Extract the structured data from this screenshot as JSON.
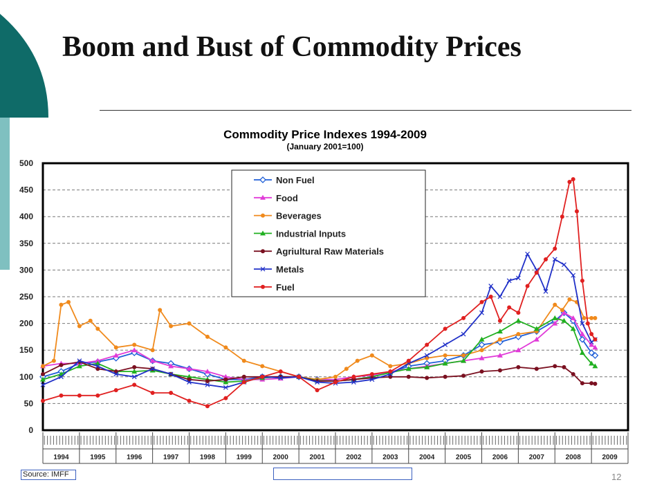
{
  "slide": {
    "title": "Boom and Bust of Commodity Prices",
    "page_number": "12",
    "source": "Source: IMFF"
  },
  "chart_data": {
    "type": "line",
    "title": "Commodity Price Indexes 1994-2009",
    "subtitle": "(January 2001=100)",
    "xlabel": "",
    "ylabel": "",
    "ylim": [
      0,
      500
    ],
    "yticks": [
      0,
      50,
      100,
      150,
      200,
      250,
      300,
      350,
      400,
      450,
      500
    ],
    "xlim": [
      1994.0,
      2010.0
    ],
    "x_year_labels": [
      "1994",
      "1995",
      "1996",
      "1997",
      "1998",
      "1999",
      "2000",
      "2001",
      "2002",
      "2003",
      "2004",
      "2005",
      "2006",
      "2007",
      "2008",
      "2009"
    ],
    "grid": "horizontal dashed",
    "legend_position": "top-center",
    "series": [
      {
        "name": "Non Fuel",
        "color": "#1f5fd8",
        "marker": "diamond",
        "x": [
          1994.0,
          1994.5,
          1995.0,
          1995.5,
          1996.0,
          1996.5,
          1997.0,
          1997.5,
          1998.0,
          1998.5,
          1999.0,
          1999.5,
          2000.0,
          2000.5,
          2001.0,
          2001.5,
          2002.0,
          2002.5,
          2003.0,
          2003.5,
          2004.0,
          2004.5,
          2005.0,
          2005.5,
          2006.0,
          2006.5,
          2007.0,
          2007.5,
          2008.0,
          2008.25,
          2008.5,
          2008.75,
          2009.0,
          2009.1
        ],
        "y": [
          100,
          110,
          125,
          128,
          135,
          145,
          130,
          125,
          115,
          105,
          95,
          95,
          100,
          100,
          100,
          95,
          92,
          95,
          100,
          108,
          120,
          125,
          130,
          140,
          160,
          165,
          175,
          185,
          205,
          220,
          205,
          170,
          145,
          140
        ]
      },
      {
        "name": "Food",
        "color": "#e13bd8",
        "marker": "triangle",
        "x": [
          1994.0,
          1994.5,
          1995.0,
          1995.5,
          1996.0,
          1996.5,
          1997.0,
          1997.5,
          1998.0,
          1998.5,
          1999.0,
          1999.5,
          2000.0,
          2000.5,
          2001.0,
          2001.5,
          2002.0,
          2002.5,
          2003.0,
          2003.5,
          2004.0,
          2004.5,
          2005.0,
          2005.5,
          2006.0,
          2006.5,
          2007.0,
          2007.5,
          2008.0,
          2008.25,
          2008.5,
          2008.75,
          2009.0,
          2009.1
        ],
        "y": [
          120,
          125,
          125,
          130,
          140,
          150,
          130,
          120,
          115,
          110,
          100,
          95,
          95,
          97,
          100,
          95,
          95,
          100,
          103,
          110,
          115,
          120,
          125,
          130,
          135,
          140,
          150,
          170,
          200,
          220,
          210,
          180,
          160,
          155
        ]
      },
      {
        "name": "Beverages",
        "color": "#f08a1c",
        "marker": "circle",
        "x": [
          1994.0,
          1994.3,
          1994.5,
          1994.7,
          1995.0,
          1995.3,
          1995.5,
          1996.0,
          1996.5,
          1997.0,
          1997.2,
          1997.5,
          1998.0,
          1998.5,
          1999.0,
          1999.5,
          2000.0,
          2000.5,
          2001.0,
          2001.5,
          2002.0,
          2002.3,
          2002.6,
          2003.0,
          2003.5,
          2004.0,
          2004.5,
          2005.0,
          2005.5,
          2006.0,
          2006.5,
          2007.0,
          2007.5,
          2008.0,
          2008.2,
          2008.4,
          2008.6,
          2008.8,
          2009.0,
          2009.1
        ],
        "y": [
          120,
          130,
          235,
          240,
          195,
          205,
          190,
          155,
          160,
          150,
          225,
          195,
          200,
          175,
          155,
          130,
          120,
          110,
          100,
          95,
          100,
          115,
          130,
          140,
          120,
          125,
          135,
          140,
          140,
          150,
          170,
          180,
          185,
          235,
          225,
          245,
          240,
          210,
          210,
          210
        ]
      },
      {
        "name": "Industrial Inputs",
        "color": "#20b020",
        "marker": "triangle",
        "x": [
          1994.0,
          1994.5,
          1995.0,
          1995.5,
          1996.0,
          1996.5,
          1997.0,
          1997.5,
          1998.0,
          1998.5,
          1999.0,
          1999.5,
          2000.0,
          2000.5,
          2001.0,
          2001.5,
          2002.0,
          2002.5,
          2003.0,
          2003.5,
          2004.0,
          2004.5,
          2005.0,
          2005.5,
          2006.0,
          2006.5,
          2007.0,
          2007.5,
          2008.0,
          2008.25,
          2008.5,
          2008.75,
          2009.0,
          2009.1
        ],
        "y": [
          95,
          105,
          120,
          125,
          110,
          110,
          112,
          105,
          100,
          95,
          90,
          92,
          98,
          100,
          100,
          93,
          92,
          95,
          100,
          108,
          115,
          118,
          125,
          130,
          170,
          185,
          205,
          190,
          210,
          205,
          190,
          145,
          125,
          120
        ]
      },
      {
        "name": "Agriultural Raw Materials",
        "color": "#7a1020",
        "marker": "circle",
        "x": [
          1994.0,
          1994.5,
          1995.0,
          1995.5,
          1996.0,
          1996.5,
          1997.0,
          1997.5,
          1998.0,
          1998.5,
          1999.0,
          1999.5,
          2000.0,
          2000.5,
          2001.0,
          2001.5,
          2002.0,
          2002.5,
          2003.0,
          2003.5,
          2004.0,
          2004.5,
          2005.0,
          2005.5,
          2006.0,
          2006.5,
          2007.0,
          2007.5,
          2008.0,
          2008.25,
          2008.5,
          2008.75,
          2009.0,
          2009.1
        ],
        "y": [
          105,
          122,
          128,
          115,
          110,
          118,
          115,
          105,
          95,
          92,
          95,
          100,
          100,
          100,
          100,
          92,
          92,
          95,
          98,
          100,
          100,
          98,
          100,
          102,
          110,
          112,
          118,
          115,
          120,
          118,
          105,
          88,
          88,
          87
        ]
      },
      {
        "name": "Metals",
        "color": "#2030c8",
        "marker": "x",
        "x": [
          1994.0,
          1994.5,
          1995.0,
          1995.5,
          1996.0,
          1996.5,
          1997.0,
          1997.5,
          1998.0,
          1998.5,
          1999.0,
          1999.5,
          2000.0,
          2000.5,
          2001.0,
          2001.5,
          2002.0,
          2002.5,
          2003.0,
          2003.5,
          2004.0,
          2004.5,
          2005.0,
          2005.5,
          2006.0,
          2006.25,
          2006.5,
          2006.75,
          2007.0,
          2007.25,
          2007.5,
          2007.75,
          2008.0,
          2008.25,
          2008.5,
          2008.75,
          2009.0,
          2009.1
        ],
        "y": [
          85,
          100,
          130,
          120,
          105,
          100,
          115,
          105,
          90,
          85,
          80,
          90,
          100,
          98,
          100,
          90,
          88,
          90,
          95,
          105,
          125,
          140,
          160,
          180,
          220,
          270,
          250,
          280,
          285,
          330,
          300,
          260,
          320,
          310,
          290,
          200,
          165,
          170
        ]
      },
      {
        "name": "Fuel",
        "color": "#e02020",
        "marker": "circle",
        "x": [
          1994.0,
          1994.5,
          1995.0,
          1995.5,
          1996.0,
          1996.5,
          1997.0,
          1997.5,
          1998.0,
          1998.5,
          1999.0,
          1999.5,
          2000.0,
          2000.5,
          2001.0,
          2001.5,
          2002.0,
          2002.5,
          2003.0,
          2003.5,
          2004.0,
          2004.5,
          2005.0,
          2005.5,
          2006.0,
          2006.25,
          2006.5,
          2006.75,
          2007.0,
          2007.25,
          2007.5,
          2007.75,
          2008.0,
          2008.2,
          2008.4,
          2008.5,
          2008.6,
          2008.75,
          2008.9,
          2009.0,
          2009.1
        ],
        "y": [
          55,
          65,
          65,
          65,
          75,
          85,
          70,
          70,
          55,
          45,
          60,
          90,
          100,
          110,
          100,
          75,
          90,
          100,
          105,
          110,
          130,
          160,
          190,
          210,
          240,
          250,
          205,
          230,
          220,
          270,
          295,
          320,
          340,
          400,
          465,
          470,
          410,
          280,
          200,
          180,
          170
        ]
      }
    ]
  }
}
